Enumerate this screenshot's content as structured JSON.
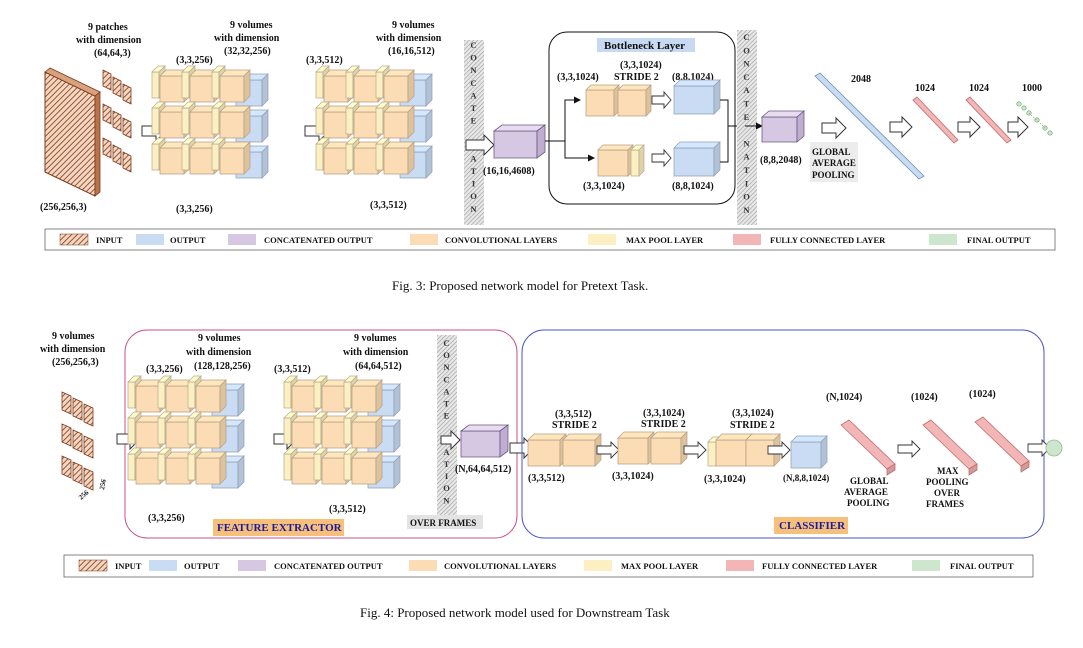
{
  "colors": {
    "input": "#a0522d",
    "output": "#c9dcf4",
    "concat": "#d6c8e3",
    "conv": "#fbdcb4",
    "maxpool": "#fcefc2",
    "fc": "#f3b6b6",
    "final": "#cde6cd",
    "fig3_highlight": "#c7daf2",
    "fig4_tag": "#f6c07a"
  },
  "fig3": {
    "caption": "Fig. 3: Proposed network model for Pretext Task.",
    "patches_label": "9 patches",
    "patches_dim_label": "with dimension",
    "patches_dim": "(64,64,3)",
    "input_dim": "(256,256,3)",
    "block1": {
      "title": "9 volumes",
      "subtitle": "with dimension",
      "dim": "(32,32,256)",
      "kernel_top": "(3,3,256)",
      "kernel_bottom": "(3,3,256)"
    },
    "block2": {
      "title": "9 volumes",
      "subtitle": "with dimension",
      "dim": "(16,16,512)",
      "kernel_top": "(3,3,512)",
      "kernel_bottom": "(3,3,512)"
    },
    "concat_letters": [
      "C",
      "O",
      "N",
      "C",
      "A",
      "T",
      "E",
      "",
      "N",
      "A",
      "T",
      "I",
      "O",
      "N"
    ],
    "concat_dim": "(16,16,4608)",
    "bottleneck": {
      "title": "Bottleneck Layer",
      "top_kernel": "(3,3,1024)",
      "top_kernel2": "(3,3,1024)",
      "top_stride": "STRIDE 2",
      "top_out": "(8,8,1024)",
      "bottom_kernel": "(3,3,1024)",
      "bottom_out": "(8,8,1024)"
    },
    "concat2_dim": "(8,8,2048)",
    "gap_label": [
      "GLOBAL",
      "AVERAGE",
      "POOLING"
    ],
    "fc_sizes": [
      "2048",
      "1024",
      "1024",
      "1000"
    ]
  },
  "fig4": {
    "caption": "Fig. 4: Proposed network model used for Downstream Task",
    "input_label": [
      "9 volumes",
      "with dimension",
      "(256,256,3)"
    ],
    "input_side": [
      "256",
      "256"
    ],
    "block1": {
      "title": "9 volumes",
      "subtitle": "with dimension",
      "dim": "(128,128,256)",
      "kernel_top": "(3,3,256)",
      "kernel_bottom": "(3,3,256)"
    },
    "block2": {
      "title": "9 volumes",
      "subtitle": "with dimension",
      "dim": "(64,64,512)",
      "kernel_top": "(3,3,512)",
      "kernel_bottom": "(3,3,512)"
    },
    "concat_letters": [
      "C",
      "O",
      "N",
      "C",
      "A",
      "T",
      "E",
      "",
      "N",
      "A",
      "T",
      "I",
      "O",
      "N"
    ],
    "over_frames": "OVER FRAMES",
    "concat_dim": "(N,64,64,512)",
    "feature_extractor": "FEATURE EXTRACTOR",
    "classifier": "CLASSIFIER",
    "cls": {
      "c1_top": "(3,3,512)",
      "c1_stride": "STRIDE 2",
      "c1_bottom": "(3,3,512)",
      "c2_top": "(3,3,1024)",
      "c2_stride": "STRIDE 2",
      "c2_bottom": "(3,3,1024)",
      "c3_top": "(3,3,1024)",
      "c3_stride": "STRIDE 2",
      "c3_bottom": "(3,3,1024)",
      "out_dim": "(N,8,8,1024)",
      "fc1_dim": "(N,1024)",
      "fc2_dim": "(1024)",
      "fc3_dim": "(1024)",
      "gap_label": [
        "GLOBAL",
        "AVERAGE",
        "POOLING"
      ],
      "maxpool_label": [
        "MAX",
        "POOLING",
        "OVER",
        "FRAMES"
      ]
    }
  },
  "legend": {
    "input": "INPUT",
    "output": "OUTPUT",
    "concat": "CONCATENATED OUTPUT",
    "conv": "CONVOLUTIONAL LAYERS",
    "maxpool": "MAX POOL LAYER",
    "fc": "FULLY CONNECTED LAYER",
    "final": "FINAL OUTPUT"
  }
}
